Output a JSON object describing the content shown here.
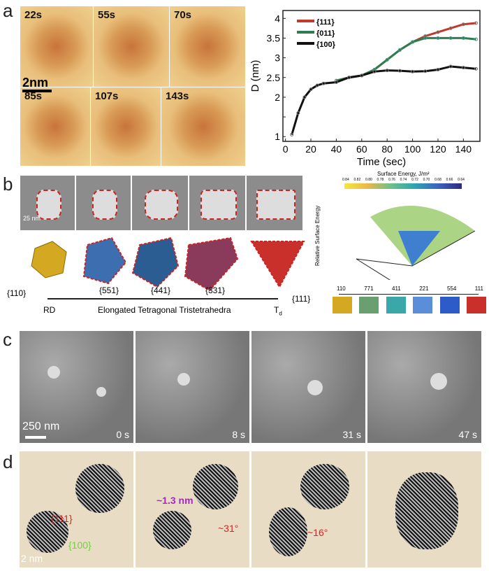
{
  "panel_labels": [
    "a",
    "b",
    "c",
    "d"
  ],
  "panel_a": {
    "frames": [
      "22s",
      "55s",
      "70s",
      "85s",
      "107s",
      "143s"
    ],
    "scale_bar": "2nm"
  },
  "chart_data": {
    "type": "line",
    "title": "",
    "xlabel": "Time (sec)",
    "ylabel": "D (nm)",
    "xlim": [
      -2,
      153
    ],
    "ylim": [
      0.88,
      4.2
    ],
    "xticks": [
      0,
      20,
      40,
      60,
      80,
      100,
      120,
      140
    ],
    "yticks": [
      1,
      1.5,
      2,
      2.5,
      3,
      3.5,
      4
    ],
    "ytick_labels": [
      "1",
      "",
      "2",
      "2.5",
      "3",
      "3.5",
      "4"
    ],
    "legend": "top-left",
    "series": [
      {
        "name": "{111}",
        "color": "#c0392b",
        "x": [
          40,
          50,
          60,
          70,
          80,
          90,
          100,
          110,
          120,
          130,
          140,
          150
        ],
        "y": [
          2.42,
          2.5,
          2.55,
          2.7,
          2.95,
          3.2,
          3.4,
          3.55,
          3.65,
          3.75,
          3.85,
          3.88
        ]
      },
      {
        "name": "{011}",
        "color": "#2e7d4f",
        "x": [
          40,
          50,
          60,
          70,
          80,
          90,
          100,
          110,
          120,
          130,
          140,
          150
        ],
        "y": [
          2.42,
          2.5,
          2.55,
          2.7,
          2.95,
          3.2,
          3.4,
          3.5,
          3.5,
          3.5,
          3.5,
          3.47
        ]
      },
      {
        "name": "{100}",
        "color": "#111111",
        "x": [
          5,
          10,
          15,
          20,
          25,
          30,
          40,
          50,
          60,
          70,
          80,
          90,
          100,
          110,
          120,
          130,
          140,
          150
        ],
        "y": [
          1.05,
          1.6,
          2.0,
          2.2,
          2.3,
          2.35,
          2.38,
          2.5,
          2.55,
          2.65,
          2.68,
          2.67,
          2.65,
          2.66,
          2.7,
          2.78,
          2.75,
          2.72
        ]
      }
    ]
  },
  "panel_b": {
    "scale_bar": "25 nm",
    "facets": [
      "{110}",
      "{551}",
      "{441}",
      "{331}",
      "{111}"
    ],
    "axis_left": "RD",
    "axis_mid": "Elongated Tetragonal Tristetrahedra",
    "axis_right": "T",
    "axis_right_sub": "d",
    "energy_title": "Surface Energy, J/m²",
    "colorbar_ticks": [
      "0.84",
      "0.82",
      "0.80",
      "0.78",
      "0.76",
      "0.74",
      "0.72",
      "0.70",
      "0.68",
      "0.66",
      "0.64"
    ],
    "zlabel": "Relative Surface Energy",
    "path_labels": [
      "110",
      "771",
      "411",
      "221",
      "554",
      "111"
    ]
  },
  "panel_c": {
    "scale_bar": "250 nm",
    "times": [
      "0 s",
      "8 s",
      "31 s",
      "47 s"
    ]
  },
  "panel_d": {
    "facet_111": "{111}",
    "facet_100": "{100}",
    "distance": "~1.3 nm",
    "angle1": "~31°",
    "angle2": "~16°",
    "scale_bar": "2 nm"
  }
}
